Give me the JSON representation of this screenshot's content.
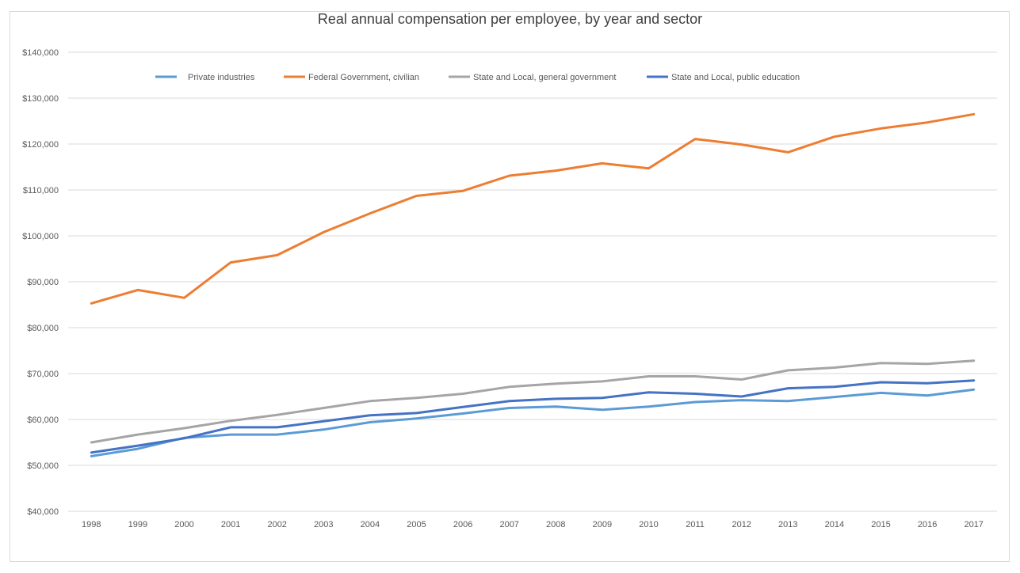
{
  "chart_data": {
    "type": "line",
    "title": "Real annual compensation per employee, by year and sector",
    "xlabel": "",
    "ylabel": "",
    "x": [
      1998,
      1999,
      2000,
      2001,
      2002,
      2003,
      2004,
      2005,
      2006,
      2007,
      2008,
      2009,
      2010,
      2011,
      2012,
      2013,
      2014,
      2015,
      2016,
      2017
    ],
    "x_tick_labels": [
      "1998",
      "1999",
      "2000",
      "2001",
      "2002",
      "2003",
      "2004",
      "2005",
      "2006",
      "2007",
      "2008",
      "2009",
      "2010",
      "2011",
      "2012",
      "2013",
      "2014",
      "2015",
      "2016",
      "2017"
    ],
    "ylim": [
      40000,
      140000
    ],
    "y_ticks": [
      40000,
      50000,
      60000,
      70000,
      80000,
      90000,
      100000,
      110000,
      120000,
      130000,
      140000
    ],
    "y_tick_labels": [
      "$40,000",
      "$50,000",
      "$60,000",
      "$70,000",
      "$80,000",
      "$90,000",
      "$100,000",
      "$110,000",
      "$120,000",
      "$130,000",
      "$140,000"
    ],
    "grid": "horizontal",
    "legend_position": "top",
    "series": [
      {
        "name": "Private industries",
        "color": "#5b9bd5",
        "values": [
          52000,
          53600,
          56000,
          56700,
          56700,
          57800,
          59400,
          60200,
          61300,
          62500,
          62800,
          62100,
          62800,
          63800,
          64200,
          64000,
          64900,
          65800,
          65200,
          66500
        ]
      },
      {
        "name": "Federal Government, civilian",
        "color": "#ed7d31",
        "values": [
          85300,
          88200,
          86500,
          94200,
          95800,
          100800,
          104900,
          108700,
          109800,
          113100,
          114200,
          115800,
          114700,
          121100,
          119900,
          118200,
          121600,
          123400,
          124700,
          126500
        ]
      },
      {
        "name": "State and Local, general government",
        "color": "#a5a5a5",
        "values": [
          55000,
          56700,
          58100,
          59700,
          61000,
          62500,
          64000,
          64700,
          65600,
          67100,
          67800,
          68300,
          69400,
          69400,
          68700,
          70700,
          71300,
          72300,
          72100,
          72800
        ]
      },
      {
        "name": "State and Local, public education",
        "color": "#4472c4",
        "values": [
          52800,
          54300,
          55900,
          58300,
          58300,
          59600,
          60900,
          61400,
          62700,
          64000,
          64500,
          64700,
          65900,
          65600,
          65000,
          66800,
          67100,
          68100,
          67900,
          68500
        ]
      }
    ]
  }
}
